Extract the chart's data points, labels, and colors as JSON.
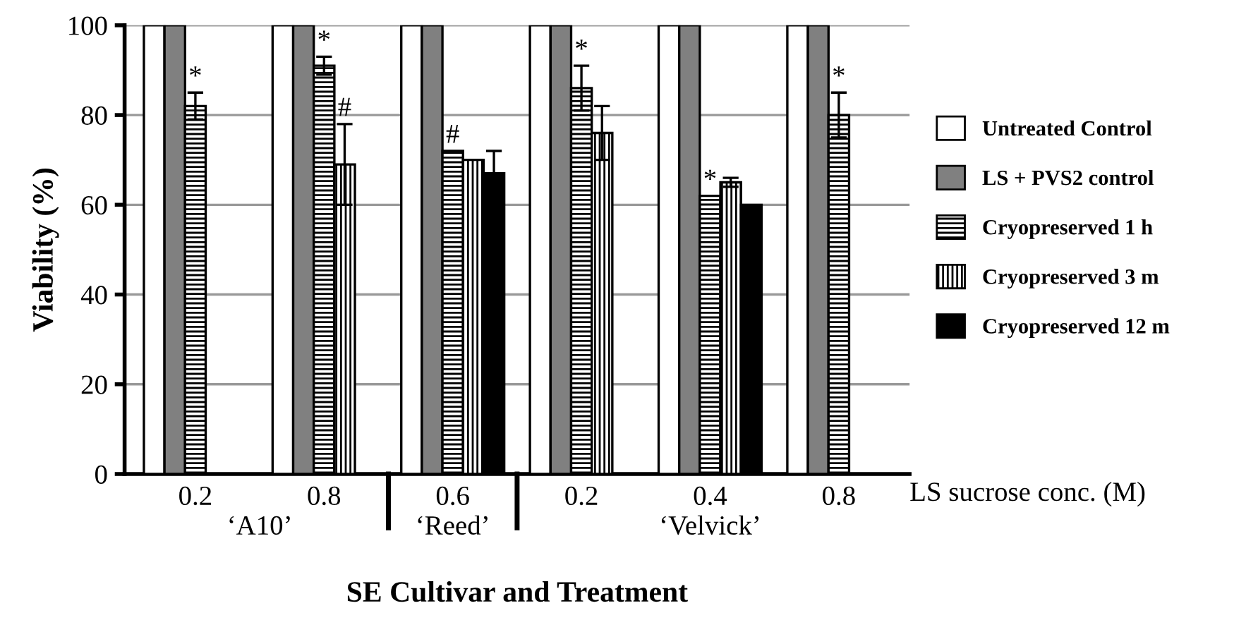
{
  "chart_data": {
    "type": "bar",
    "ylabel": "Viability (%)",
    "xlabel": "SE Cultivar and Treatment",
    "categories": [
      "0.2",
      "0.8",
      "0.6",
      "0.2",
      "0.4",
      "0.8"
    ],
    "series": [
      {
        "name": "Untreated Control",
        "color": "#ffffff",
        "values": [
          100,
          100,
          100,
          100,
          100,
          100
        ]
      },
      {
        "name": "LS + PVS2 control",
        "color": "#808080",
        "values": [
          100,
          100,
          100,
          100,
          100,
          100
        ]
      },
      {
        "name": "Cryopreserved 1 h",
        "color": "#000000",
        "values": [
          82,
          91,
          72,
          86,
          62,
          80
        ],
        "errors": [
          3,
          2,
          null,
          5,
          null,
          5
        ]
      },
      {
        "name": "Cryopreserved 3 m",
        "color": "#000000",
        "values": [
          null,
          69,
          70,
          76,
          65,
          null
        ],
        "errors": [
          null,
          9,
          null,
          6,
          1,
          null
        ]
      },
      {
        "name": "Cryopreserved 12 m",
        "color": "#000000",
        "values": [
          null,
          null,
          67,
          null,
          60,
          null
        ],
        "errors": [
          null,
          null,
          5,
          null,
          null,
          null
        ]
      }
    ],
    "ylim": [
      0,
      100
    ],
    "yticks": [
      0,
      20,
      40,
      60,
      80,
      100
    ],
    "grid": "y",
    "legend": "right",
    "annotations": [
      "‘A10’",
      "‘Reed’",
      "‘Velvick’",
      "LS sucrose conc. (M)",
      {
        "text": "*",
        "x": "0.2",
        "y": 82
      },
      {
        "text": "*",
        "x": "0.8",
        "y": 91
      },
      {
        "text": "#",
        "y": 69
      },
      {
        "text": "#",
        "x": "0.6",
        "y": 72
      },
      {
        "text": "*",
        "y": 86
      },
      {
        "text": "*",
        "x": "0.4",
        "y": 62
      },
      {
        "text": "*",
        "y": 80
      }
    ]
  }
}
